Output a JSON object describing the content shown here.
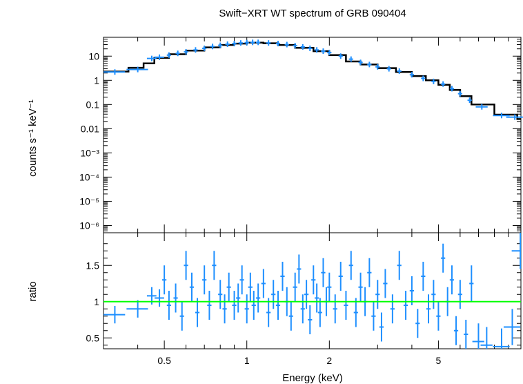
{
  "chart_data": {
    "type": "scatter",
    "title": "Swift−XRT WT spectrum of GRB 090404",
    "xlabel": "Energy (keV)",
    "xscale": "log",
    "xlim": [
      0.3,
      10
    ],
    "x_tick_labels": [
      "0.5",
      "1",
      "2",
      "5"
    ],
    "colors": {
      "data": "#1e8fff",
      "model": "#000000",
      "unity": "#00ff00"
    },
    "panels": [
      {
        "name": "spectrum",
        "ylabel": "counts s⁻¹ keV⁻¹",
        "yscale": "log",
        "ylim": [
          5e-07,
          60
        ],
        "y_tick_labels": [
          "10⁻⁶",
          "10⁻⁵",
          "10⁻⁴",
          "10⁻³",
          "0.01",
          "0.1",
          "1",
          "10"
        ],
        "data_points": [
          {
            "x": 0.33,
            "y": 2.2
          },
          {
            "x": 0.4,
            "y": 2.8
          },
          {
            "x": 0.45,
            "y": 8.0
          },
          {
            "x": 0.48,
            "y": 9.0
          },
          {
            "x": 0.52,
            "y": 11
          },
          {
            "x": 0.56,
            "y": 13
          },
          {
            "x": 0.6,
            "y": 15
          },
          {
            "x": 0.65,
            "y": 18
          },
          {
            "x": 0.7,
            "y": 21
          },
          {
            "x": 0.75,
            "y": 25
          },
          {
            "x": 0.8,
            "y": 28
          },
          {
            "x": 0.85,
            "y": 31
          },
          {
            "x": 0.9,
            "y": 33
          },
          {
            "x": 0.95,
            "y": 35
          },
          {
            "x": 1.0,
            "y": 36
          },
          {
            "x": 1.05,
            "y": 37
          },
          {
            "x": 1.1,
            "y": 37
          },
          {
            "x": 1.2,
            "y": 35
          },
          {
            "x": 1.3,
            "y": 33
          },
          {
            "x": 1.4,
            "y": 30
          },
          {
            "x": 1.5,
            "y": 27
          },
          {
            "x": 1.6,
            "y": 24
          },
          {
            "x": 1.7,
            "y": 21
          },
          {
            "x": 1.8,
            "y": 18
          },
          {
            "x": 1.9,
            "y": 16
          },
          {
            "x": 2.0,
            "y": 14
          },
          {
            "x": 2.2,
            "y": 10
          },
          {
            "x": 2.4,
            "y": 7.5
          },
          {
            "x": 2.6,
            "y": 5.5
          },
          {
            "x": 2.8,
            "y": 4.5
          },
          {
            "x": 3.0,
            "y": 3.6
          },
          {
            "x": 3.3,
            "y": 3.0
          },
          {
            "x": 3.6,
            "y": 2.4
          },
          {
            "x": 4.0,
            "y": 1.7
          },
          {
            "x": 4.4,
            "y": 1.2
          },
          {
            "x": 4.8,
            "y": 0.9
          },
          {
            "x": 5.2,
            "y": 0.7
          },
          {
            "x": 5.6,
            "y": 0.45
          },
          {
            "x": 6.0,
            "y": 0.28
          },
          {
            "x": 6.5,
            "y": 0.15
          },
          {
            "x": 7.2,
            "y": 0.08
          },
          {
            "x": 8.5,
            "y": 0.035
          },
          {
            "x": 9.5,
            "y": 0.03
          }
        ],
        "model_steps": [
          {
            "x0": 0.3,
            "x1": 0.37,
            "y": 2.3
          },
          {
            "x0": 0.37,
            "x1": 0.42,
            "y": 3.3
          },
          {
            "x0": 0.42,
            "x1": 0.46,
            "y": 5.0
          },
          {
            "x0": 0.46,
            "x1": 0.52,
            "y": 8.5
          },
          {
            "x0": 0.52,
            "x1": 0.6,
            "y": 12
          },
          {
            "x0": 0.6,
            "x1": 0.7,
            "y": 17
          },
          {
            "x0": 0.7,
            "x1": 0.8,
            "y": 23
          },
          {
            "x0": 0.8,
            "x1": 0.9,
            "y": 29
          },
          {
            "x0": 0.9,
            "x1": 1.0,
            "y": 33
          },
          {
            "x0": 1.0,
            "x1": 1.15,
            "y": 36
          },
          {
            "x0": 1.15,
            "x1": 1.3,
            "y": 34
          },
          {
            "x0": 1.3,
            "x1": 1.5,
            "y": 29
          },
          {
            "x0": 1.5,
            "x1": 1.75,
            "y": 22
          },
          {
            "x0": 1.75,
            "x1": 2.0,
            "y": 16
          },
          {
            "x0": 2.0,
            "x1": 2.3,
            "y": 11
          },
          {
            "x0": 2.3,
            "x1": 2.6,
            "y": 6.0
          },
          {
            "x0": 2.6,
            "x1": 3.0,
            "y": 4.5
          },
          {
            "x0": 3.0,
            "x1": 3.5,
            "y": 3.2
          },
          {
            "x0": 3.5,
            "x1": 4.0,
            "y": 2.2
          },
          {
            "x0": 4.0,
            "x1": 4.5,
            "y": 1.5
          },
          {
            "x0": 4.5,
            "x1": 5.0,
            "y": 1.0
          },
          {
            "x0": 5.0,
            "x1": 5.5,
            "y": 0.65
          },
          {
            "x0": 5.5,
            "x1": 6.0,
            "y": 0.4
          },
          {
            "x0": 6.0,
            "x1": 6.6,
            "y": 0.22
          },
          {
            "x0": 6.6,
            "x1": 8.0,
            "y": 0.1
          },
          {
            "x0": 8.0,
            "x1": 9.7,
            "y": 0.038
          },
          {
            "x0": 9.7,
            "x1": 10.0,
            "y": 0.025
          }
        ]
      },
      {
        "name": "ratio",
        "ylabel": "ratio",
        "ylim": [
          0.35,
          1.95
        ],
        "y_tick_labels": [
          "0.5",
          "1",
          "1.5"
        ],
        "unity_line": 1,
        "data_points": [
          {
            "x": 0.33,
            "y": 0.82
          },
          {
            "x": 0.4,
            "y": 0.9
          },
          {
            "x": 0.45,
            "y": 1.08
          },
          {
            "x": 0.48,
            "y": 1.05
          },
          {
            "x": 0.5,
            "y": 1.3
          },
          {
            "x": 0.52,
            "y": 0.95
          },
          {
            "x": 0.55,
            "y": 1.05
          },
          {
            "x": 0.58,
            "y": 0.8
          },
          {
            "x": 0.6,
            "y": 1.5
          },
          {
            "x": 0.63,
            "y": 1.2
          },
          {
            "x": 0.66,
            "y": 0.85
          },
          {
            "x": 0.7,
            "y": 1.3
          },
          {
            "x": 0.73,
            "y": 0.95
          },
          {
            "x": 0.76,
            "y": 1.5
          },
          {
            "x": 0.8,
            "y": 1.1
          },
          {
            "x": 0.83,
            "y": 0.9
          },
          {
            "x": 0.86,
            "y": 1.2
          },
          {
            "x": 0.9,
            "y": 0.95
          },
          {
            "x": 0.93,
            "y": 1.05
          },
          {
            "x": 0.96,
            "y": 1.3
          },
          {
            "x": 1.0,
            "y": 0.9
          },
          {
            "x": 1.03,
            "y": 1.2
          },
          {
            "x": 1.06,
            "y": 0.95
          },
          {
            "x": 1.1,
            "y": 1.05
          },
          {
            "x": 1.15,
            "y": 1.25
          },
          {
            "x": 1.2,
            "y": 0.85
          },
          {
            "x": 1.25,
            "y": 1.1
          },
          {
            "x": 1.3,
            "y": 0.95
          },
          {
            "x": 1.35,
            "y": 1.35
          },
          {
            "x": 1.4,
            "y": 1.0
          },
          {
            "x": 1.45,
            "y": 0.8
          },
          {
            "x": 1.5,
            "y": 1.2
          },
          {
            "x": 1.55,
            "y": 1.45
          },
          {
            "x": 1.6,
            "y": 0.9
          },
          {
            "x": 1.65,
            "y": 1.1
          },
          {
            "x": 1.7,
            "y": 0.75
          },
          {
            "x": 1.75,
            "y": 1.3
          },
          {
            "x": 1.8,
            "y": 1.05
          },
          {
            "x": 1.85,
            "y": 0.85
          },
          {
            "x": 1.9,
            "y": 1.4
          },
          {
            "x": 1.95,
            "y": 1.0
          },
          {
            "x": 2.0,
            "y": 1.2
          },
          {
            "x": 2.1,
            "y": 0.9
          },
          {
            "x": 2.2,
            "y": 1.35
          },
          {
            "x": 2.3,
            "y": 0.95
          },
          {
            "x": 2.4,
            "y": 1.5
          },
          {
            "x": 2.5,
            "y": 0.85
          },
          {
            "x": 2.6,
            "y": 1.2
          },
          {
            "x": 2.7,
            "y": 1.0
          },
          {
            "x": 2.8,
            "y": 1.4
          },
          {
            "x": 2.9,
            "y": 0.8
          },
          {
            "x": 3.0,
            "y": 1.1
          },
          {
            "x": 3.1,
            "y": 0.65
          },
          {
            "x": 3.2,
            "y": 1.25
          },
          {
            "x": 3.4,
            "y": 0.9
          },
          {
            "x": 3.6,
            "y": 1.5
          },
          {
            "x": 3.8,
            "y": 0.95
          },
          {
            "x": 4.0,
            "y": 1.15
          },
          {
            "x": 4.2,
            "y": 0.7
          },
          {
            "x": 4.4,
            "y": 1.35
          },
          {
            "x": 4.6,
            "y": 0.9
          },
          {
            "x": 4.8,
            "y": 1.1
          },
          {
            "x": 5.0,
            "y": 0.8
          },
          {
            "x": 5.2,
            "y": 1.6
          },
          {
            "x": 5.4,
            "y": 1.0
          },
          {
            "x": 5.6,
            "y": 1.3
          },
          {
            "x": 5.8,
            "y": 0.6
          },
          {
            "x": 6.0,
            "y": 1.1
          },
          {
            "x": 6.3,
            "y": 0.55
          },
          {
            "x": 6.6,
            "y": 1.25
          },
          {
            "x": 7.0,
            "y": 0.45
          },
          {
            "x": 7.5,
            "y": 0.4
          },
          {
            "x": 8.5,
            "y": 0.38
          },
          {
            "x": 9.3,
            "y": 0.65
          },
          {
            "x": 9.95,
            "y": 1.7
          }
        ]
      }
    ]
  }
}
